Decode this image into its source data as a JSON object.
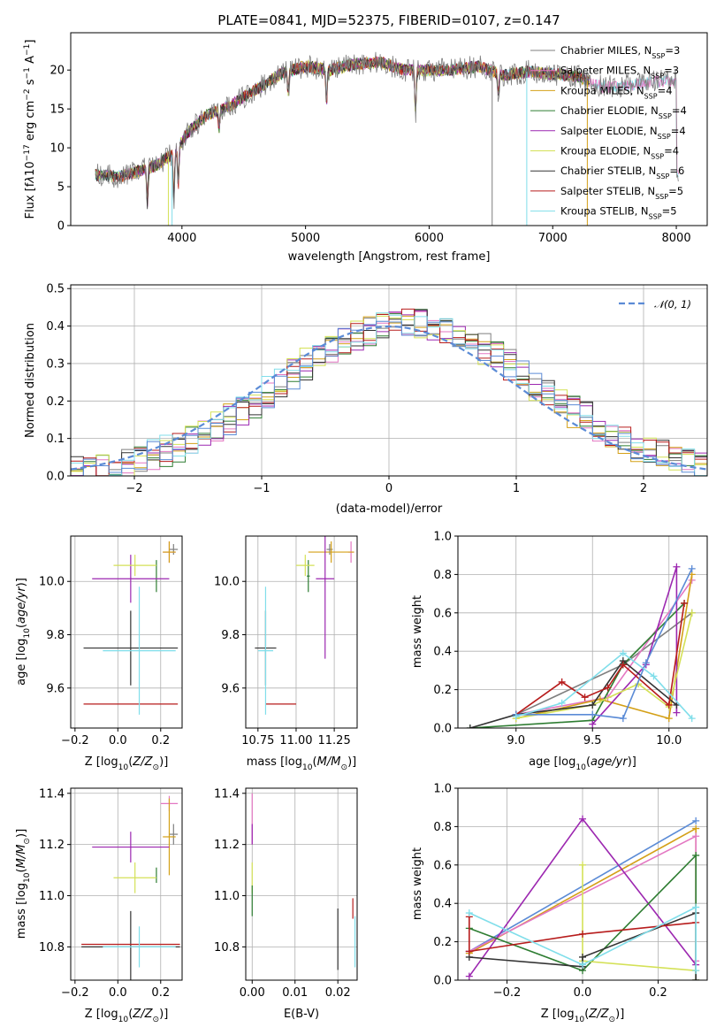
{
  "title": "PLATE=0841, MJD=52375, FIBERID=0107, z=0.147",
  "colors": {
    "c0": "#7f7f7f",
    "c1": "#e377c2",
    "c2": "#d4a017",
    "c3": "#2e7d32",
    "c4": "#9c27b0",
    "c5": "#d4e157",
    "c6": "#333333",
    "c7": "#b71c1c",
    "c8": "#80deea",
    "gauss": "#5b8bd6"
  },
  "chart_data": [
    {
      "id": "spectrum",
      "type": "line",
      "title": "PLATE=0841, MJD=52375, FIBERID=0107, z=0.147",
      "xlabel": "wavelength [Angstrom, rest frame]",
      "ylabel": "Flux [f",
      "xlim": [
        3100,
        8250
      ],
      "ylim": [
        0,
        24.8
      ],
      "xticks": [
        4000,
        5000,
        6000,
        7000,
        8000
      ],
      "yticks": [
        0,
        5,
        10,
        15,
        20
      ],
      "legend": "top-right",
      "series": [
        {
          "name": "Chabrier MILES, N",
          "nssp": "3",
          "color": "c0"
        },
        {
          "name": "Salpeter MILES, N",
          "nssp": "3",
          "color": "c1"
        },
        {
          "name": "Kroupa MILES, N",
          "nssp": "4",
          "color": "c2"
        },
        {
          "name": "Chabrier ELODIE, N",
          "nssp": "4",
          "color": "c3"
        },
        {
          "name": "Salpeter ELODIE, N",
          "nssp": "4",
          "color": "c4"
        },
        {
          "name": "Kroupa ELODIE, N",
          "nssp": "4",
          "color": "c5"
        },
        {
          "name": "Chabrier STELIB, N",
          "nssp": "6",
          "color": "c6"
        },
        {
          "name": "Salpeter STELIB, N",
          "nssp": "5",
          "color": "c7"
        },
        {
          "name": "Kroupa STELIB, N",
          "nssp": "5",
          "color": "c8"
        }
      ],
      "continuum": [
        [
          3300,
          6.5
        ],
        [
          3500,
          6.3
        ],
        [
          3650,
          7.0
        ],
        [
          3800,
          7.8
        ],
        [
          3950,
          9.6
        ],
        [
          4050,
          12.0
        ],
        [
          4200,
          14.2
        ],
        [
          4400,
          15.5
        ],
        [
          4600,
          17.5
        ],
        [
          4800,
          19.5
        ],
        [
          5000,
          20.5
        ],
        [
          5200,
          20.0
        ],
        [
          5400,
          20.8
        ],
        [
          5600,
          21.0
        ],
        [
          5800,
          20.0
        ],
        [
          6000,
          20.0
        ],
        [
          6200,
          20.0
        ],
        [
          6400,
          20.5
        ],
        [
          6600,
          19.3
        ],
        [
          6800,
          19.8
        ],
        [
          7000,
          19.5
        ],
        [
          7200,
          19.2
        ],
        [
          7400,
          17.8
        ],
        [
          7600,
          18.0
        ],
        [
          7800,
          18.5
        ],
        [
          8000,
          18.6
        ]
      ],
      "dips": [
        [
          3720,
          4.5
        ],
        [
          3935,
          6.0
        ],
        [
          3970,
          5.0
        ],
        [
          4300,
          2.5
        ],
        [
          4860,
          3.0
        ],
        [
          5170,
          4.0
        ],
        [
          5890,
          6.0
        ],
        [
          6560,
          3.0
        ]
      ],
      "drops": [
        {
          "x": 3920,
          "color": "c8"
        },
        {
          "x": 6510,
          "color": "c0"
        },
        {
          "x": 6790,
          "color": "c8"
        },
        {
          "x": 3890,
          "color": "c5"
        },
        {
          "x": 7280,
          "color": "c2"
        }
      ]
    },
    {
      "id": "residuals",
      "type": "histogram",
      "xlabel": "(data-model)/error",
      "ylabel": "Normed distribution",
      "xlim": [
        -2.5,
        2.5
      ],
      "ylim": [
        0,
        0.51
      ],
      "xticks": [
        -2,
        -1,
        0,
        1,
        2
      ],
      "yticks": [
        0.0,
        0.1,
        0.2,
        0.3,
        0.4,
        0.5
      ],
      "legend": "top-right",
      "gauss_label": "𝒩(0, 1)",
      "bin_width": 0.1
    },
    {
      "id": "age-vs-Z",
      "type": "errorbar",
      "xlabel": "Z [log",
      "ylabel": "age  [log",
      "xlim": [
        -0.22,
        0.3
      ],
      "ylim": [
        9.45,
        10.17
      ],
      "xticks": [
        -0.2,
        0.0,
        0.2
      ],
      "yticks": [
        9.6,
        9.8,
        10.0
      ],
      "points": [
        {
          "x": 0.26,
          "y": 10.12,
          "xerr": 0.02,
          "yerr": 0.02,
          "color": "c0"
        },
        {
          "x": 0.24,
          "y": 10.11,
          "xerr": 0.03,
          "yerr": 0.04,
          "color": "c1"
        },
        {
          "x": 0.24,
          "y": 10.11,
          "xerr": 0.03,
          "yerr": 0.04,
          "color": "c2"
        },
        {
          "x": 0.18,
          "y": 10.02,
          "xerr": 0.0,
          "yerr": 0.06,
          "color": "c3"
        },
        {
          "x": 0.06,
          "y": 10.01,
          "xerr": 0.18,
          "yerr": 0.09,
          "color": "c4"
        },
        {
          "x": 0.08,
          "y": 10.06,
          "xerr": 0.1,
          "yerr": 0.04,
          "color": "c5"
        },
        {
          "x": 0.06,
          "y": 9.75,
          "xerr": 0.22,
          "yerr": 0.14,
          "color": "c6"
        },
        {
          "x": 0.06,
          "y": 9.54,
          "xerr": 0.22,
          "yerr": 0.0,
          "color": "c7"
        },
        {
          "x": 0.1,
          "y": 9.74,
          "xerr": 0.17,
          "yerr": 0.24,
          "color": "c8"
        }
      ]
    },
    {
      "id": "age-vs-mass",
      "type": "errorbar",
      "xlabel": "mass [log",
      "ylabel": "",
      "xlim": [
        10.67,
        11.4
      ],
      "ylim": [
        9.45,
        10.17
      ],
      "xticks": [
        10.75,
        11.0,
        11.25
      ],
      "yticks": [
        9.6,
        9.8,
        10.0
      ],
      "points": [
        {
          "x": 11.22,
          "y": 10.12,
          "xerr": 0.02,
          "yerr": 0.02,
          "color": "c0"
        },
        {
          "x": 11.36,
          "y": 10.11,
          "xerr": 0.02,
          "yerr": 0.04,
          "color": "c1"
        },
        {
          "x": 11.23,
          "y": 10.11,
          "xerr": 0.15,
          "yerr": 0.04,
          "color": "c2"
        },
        {
          "x": 11.08,
          "y": 10.02,
          "xerr": 0.01,
          "yerr": 0.06,
          "color": "c3"
        },
        {
          "x": 11.19,
          "y": 10.01,
          "xerr": 0.06,
          "yerr": 0.3,
          "color": "c4"
        },
        {
          "x": 11.06,
          "y": 10.06,
          "xerr": 0.06,
          "yerr": 0.04,
          "color": "c5"
        },
        {
          "x": 10.8,
          "y": 9.75,
          "xerr": 0.07,
          "yerr": 0.14,
          "color": "c6"
        },
        {
          "x": 10.9,
          "y": 9.54,
          "xerr": 0.1,
          "yerr": 0.0,
          "color": "c7"
        },
        {
          "x": 10.8,
          "y": 9.74,
          "xerr": 0.05,
          "yerr": 0.24,
          "color": "c8"
        }
      ]
    },
    {
      "id": "weight-vs-age",
      "type": "line",
      "xlabel": "age  [log",
      "ylabel": "mass weight",
      "xlim": [
        8.62,
        10.25
      ],
      "ylim": [
        0,
        1
      ],
      "xticks": [
        9.0,
        9.5,
        10.0
      ],
      "yticks": [
        0.0,
        0.2,
        0.4,
        0.6,
        0.8,
        1.0
      ],
      "series": [
        {
          "color": "c0",
          "points": [
            [
              9.0,
              0.07
            ],
            [
              9.7,
              0.33
            ],
            [
              10.15,
              0.6
            ]
          ]
        },
        {
          "color": "c1",
          "points": [
            [
              9.0,
              0.07
            ],
            [
              9.6,
              0.16
            ],
            [
              10.15,
              0.77
            ]
          ]
        },
        {
          "color": "c2",
          "points": [
            [
              9.0,
              0.05
            ],
            [
              9.55,
              0.15
            ],
            [
              10.0,
              0.05
            ],
            [
              10.15,
              0.8
            ]
          ]
        },
        {
          "color": "c3",
          "points": [
            [
              8.7,
              0.0
            ],
            [
              9.5,
              0.04
            ],
            [
              9.7,
              0.33
            ],
            [
              10.1,
              0.65
            ]
          ]
        },
        {
          "color": "c4",
          "points": [
            [
              9.5,
              0.02
            ],
            [
              9.85,
              0.33
            ],
            [
              10.05,
              0.84
            ],
            [
              10.05,
              0.08
            ]
          ]
        },
        {
          "color": "c5",
          "points": [
            [
              9.0,
              0.05
            ],
            [
              9.5,
              0.12
            ],
            [
              9.8,
              0.23
            ],
            [
              10.0,
              0.11
            ],
            [
              10.15,
              0.6
            ]
          ]
        },
        {
          "color": "c6",
          "points": [
            [
              8.7,
              0.0
            ],
            [
              9.0,
              0.07
            ],
            [
              9.5,
              0.12
            ],
            [
              9.7,
              0.35
            ],
            [
              10.05,
              0.12
            ]
          ]
        },
        {
          "color": "c7",
          "points": [
            [
              9.0,
              0.07
            ],
            [
              9.3,
              0.24
            ],
            [
              9.45,
              0.16
            ],
            [
              9.6,
              0.21
            ],
            [
              9.7,
              0.33
            ],
            [
              10.0,
              0.12
            ],
            [
              10.1,
              0.65
            ]
          ]
        },
        {
          "color": "gauss",
          "points": [
            [
              9.0,
              0.07
            ],
            [
              9.5,
              0.07
            ],
            [
              9.7,
              0.05
            ],
            [
              9.85,
              0.34
            ],
            [
              10.15,
              0.83
            ]
          ]
        },
        {
          "color": "c8",
          "points": [
            [
              9.0,
              0.06
            ],
            [
              9.3,
              0.13
            ],
            [
              9.7,
              0.39
            ],
            [
              9.9,
              0.27
            ],
            [
              10.15,
              0.05
            ]
          ]
        }
      ]
    },
    {
      "id": "mass-vs-Z",
      "type": "errorbar",
      "xlabel": "Z [log",
      "ylabel": "mass [log",
      "xlim": [
        -0.22,
        0.3
      ],
      "ylim": [
        10.67,
        11.42
      ],
      "xticks": [
        -0.2,
        0.0,
        0.2
      ],
      "yticks": [
        10.8,
        11.0,
        11.2,
        11.4
      ],
      "points": [
        {
          "x": 0.26,
          "y": 11.24,
          "xerr": 0.02,
          "yerr": 0.04,
          "color": "c0"
        },
        {
          "x": 0.24,
          "y": 11.36,
          "xerr": 0.04,
          "yerr": 0.03,
          "color": "c1"
        },
        {
          "x": 0.24,
          "y": 11.23,
          "xerr": 0.03,
          "yerr": 0.15,
          "color": "c2"
        },
        {
          "x": 0.18,
          "y": 11.08,
          "xerr": 0.0,
          "yerr": 0.03,
          "color": "c3"
        },
        {
          "x": 0.06,
          "y": 11.19,
          "xerr": 0.18,
          "yerr": 0.06,
          "color": "c4"
        },
        {
          "x": 0.08,
          "y": 11.07,
          "xerr": 0.1,
          "yerr": 0.06,
          "color": "c5"
        },
        {
          "x": 0.06,
          "y": 10.8,
          "xerr": 0.23,
          "yerr": 0.14,
          "color": "c6"
        },
        {
          "x": 0.06,
          "y": 10.81,
          "xerr": 0.23,
          "yerr": 0.0,
          "color": "c7"
        },
        {
          "x": 0.1,
          "y": 10.8,
          "xerr": 0.17,
          "yerr": 0.08,
          "color": "c8"
        }
      ]
    },
    {
      "id": "mass-vs-EBV",
      "type": "errorbar",
      "xlabel": "E(B-V)",
      "ylabel": "",
      "xlim": [
        -0.0015,
        0.0245
      ],
      "ylim": [
        10.67,
        11.42
      ],
      "xticks": [
        0.0,
        0.01,
        0.02
      ],
      "yticks": [
        10.8,
        11.0,
        11.2,
        11.4
      ],
      "points": [
        {
          "x": 0.0,
          "y": 11.3,
          "xerr": 0,
          "yerr": 0.1,
          "color": "c1"
        },
        {
          "x": 0.0,
          "y": 11.24,
          "xerr": 0,
          "yerr": 0.04,
          "color": "c4"
        },
        {
          "x": 0.0,
          "y": 11.07,
          "xerr": 0,
          "yerr": 0.06,
          "color": "c5"
        },
        {
          "x": 0.0,
          "y": 10.98,
          "xerr": 0,
          "yerr": 0.06,
          "color": "c3"
        },
        {
          "x": 0.02,
          "y": 10.83,
          "xerr": 0,
          "yerr": 0.12,
          "color": "c6"
        },
        {
          "x": 0.024,
          "y": 10.82,
          "xerr": 0,
          "yerr": 0.1,
          "color": "c8"
        },
        {
          "x": 0.0235,
          "y": 10.95,
          "xerr": 0,
          "yerr": 0.04,
          "color": "c7"
        }
      ]
    },
    {
      "id": "weight-vs-Z",
      "type": "line",
      "xlabel": "Z [log",
      "ylabel": "mass weight",
      "xlim": [
        -0.33,
        0.33
      ],
      "ylim": [
        0,
        1
      ],
      "xticks": [
        -0.2,
        0.0,
        0.2
      ],
      "yticks": [
        0.0,
        0.2,
        0.4,
        0.6,
        0.8,
        1.0
      ],
      "series": [
        {
          "color": "gauss",
          "points": [
            [
              -0.3,
              0.15
            ],
            [
              0.3,
              0.83
            ]
          ]
        },
        {
          "color": "c2",
          "points": [
            [
              -0.3,
              0.14
            ],
            [
              0.3,
              0.79
            ],
            [
              0.3,
              0.0
            ]
          ]
        },
        {
          "color": "c1",
          "points": [
            [
              -0.3,
              0.15
            ],
            [
              0.3,
              0.75
            ],
            [
              0.3,
              0.1
            ]
          ]
        },
        {
          "color": "c4",
          "points": [
            [
              -0.3,
              0.02
            ],
            [
              0.0,
              0.84
            ],
            [
              0.3,
              0.08
            ]
          ]
        },
        {
          "color": "c3",
          "points": [
            [
              -0.3,
              0.27
            ],
            [
              0.0,
              0.05
            ],
            [
              0.3,
              0.65
            ],
            [
              0.3,
              0.0
            ]
          ]
        },
        {
          "color": "c5",
          "points": [
            [
              0.0,
              0.6
            ],
            [
              0.0,
              0.1
            ],
            [
              0.3,
              0.05
            ]
          ]
        },
        {
          "color": "c6",
          "points": [
            [
              -0.3,
              0.12
            ],
            [
              0.0,
              0.07
            ],
            [
              0.0,
              0.12
            ],
            [
              0.3,
              0.35
            ],
            [
              0.3,
              0.0
            ]
          ]
        },
        {
          "color": "c7",
          "points": [
            [
              -0.3,
              0.33
            ],
            [
              -0.3,
              0.15
            ],
            [
              0.0,
              0.24
            ],
            [
              0.3,
              0.3
            ]
          ]
        },
        {
          "color": "c8",
          "points": [
            [
              -0.3,
              0.35
            ],
            [
              0.0,
              0.08
            ],
            [
              0.3,
              0.38
            ],
            [
              0.3,
              0.05
            ]
          ]
        }
      ]
    }
  ]
}
